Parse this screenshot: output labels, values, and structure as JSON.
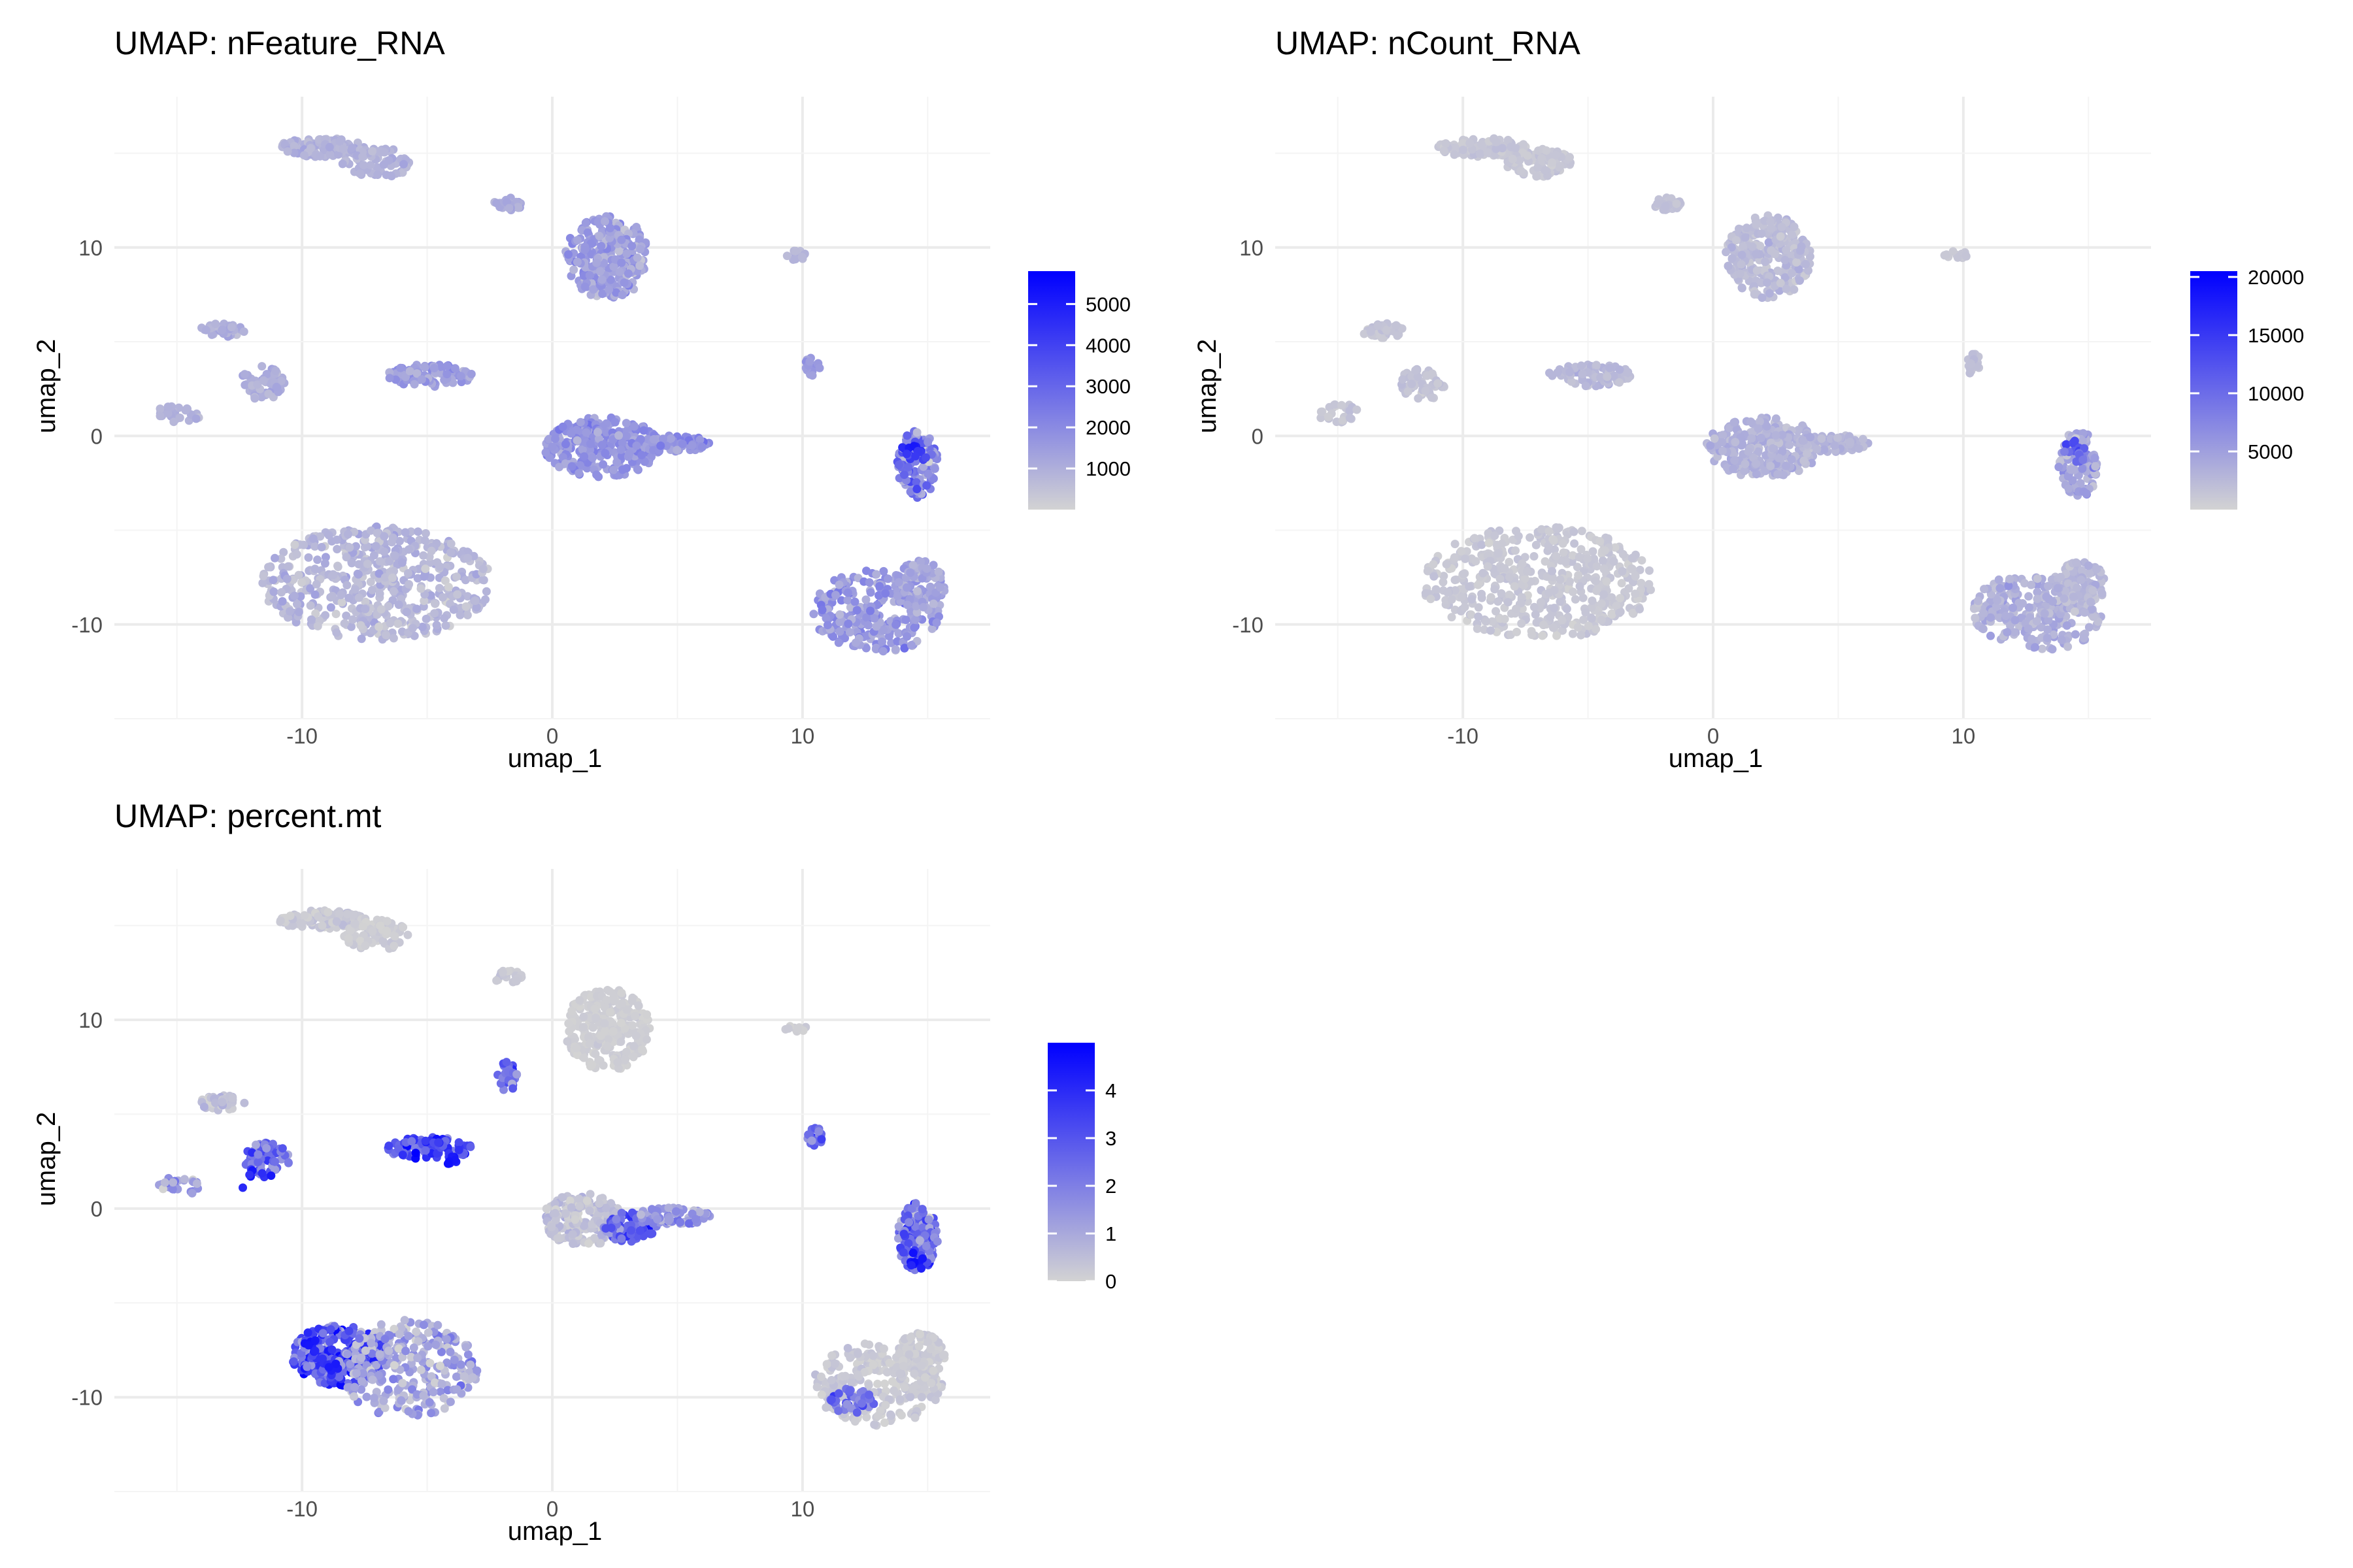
{
  "chart_data": [
    {
      "type": "scatter",
      "title": "UMAP: nFeature_RNA",
      "xlabel": "umap_1",
      "ylabel": "umap_2",
      "xlim": [
        -17.5,
        17.5
      ],
      "ylim": [
        -15,
        18
      ],
      "xticks": [
        -10,
        0,
        10
      ],
      "yticks": [
        -10,
        0,
        10
      ],
      "grid": true,
      "legend": {
        "position": "right",
        "type": "colorbar",
        "min": 0,
        "max": 5800,
        "ticks": [
          1000,
          2000,
          3000,
          4000,
          5000
        ],
        "low_color": "#d3d3d3",
        "high_color": "#0000ff"
      },
      "clusters": [
        {
          "cx": -7.0,
          "cy": -7.8,
          "rx": 4.6,
          "ry": 3.0,
          "n": 520,
          "base": 0.13,
          "spread": 0.08
        },
        {
          "cx": 13.0,
          "cy": -9.3,
          "rx": 2.6,
          "ry": 2.2,
          "n": 260,
          "base": 0.28,
          "spread": 0.12
        },
        {
          "cx": 14.7,
          "cy": -8.0,
          "rx": 1.0,
          "ry": 1.4,
          "n": 100,
          "base": 0.22,
          "spread": 0.1
        },
        {
          "cx": 2.0,
          "cy": -0.6,
          "rx": 2.3,
          "ry": 1.6,
          "n": 260,
          "base": 0.3,
          "spread": 0.1
        },
        {
          "cx": 4.8,
          "cy": -0.4,
          "rx": 1.5,
          "ry": 0.45,
          "n": 70,
          "base": 0.3,
          "spread": 0.1
        },
        {
          "cx": 14.6,
          "cy": -1.5,
          "rx": 0.8,
          "ry": 1.8,
          "n": 120,
          "base": 0.35,
          "spread": 0.25
        },
        {
          "cx": 2.2,
          "cy": 9.5,
          "rx": 1.7,
          "ry": 2.2,
          "n": 260,
          "base": 0.24,
          "spread": 0.12
        },
        {
          "cx": -1.8,
          "cy": 12.3,
          "rx": 0.6,
          "ry": 0.35,
          "n": 25,
          "base": 0.2,
          "spread": 0.05
        },
        {
          "cx": -9.2,
          "cy": 15.3,
          "rx": 1.8,
          "ry": 0.5,
          "n": 110,
          "base": 0.15,
          "spread": 0.05
        },
        {
          "cx": -7.0,
          "cy": 14.5,
          "rx": 1.4,
          "ry": 0.8,
          "n": 80,
          "base": 0.15,
          "spread": 0.05
        },
        {
          "cx": -4.9,
          "cy": 3.2,
          "rx": 1.7,
          "ry": 0.6,
          "n": 90,
          "base": 0.26,
          "spread": 0.1
        },
        {
          "cx": -13.2,
          "cy": 5.6,
          "rx": 0.9,
          "ry": 0.4,
          "n": 40,
          "base": 0.16,
          "spread": 0.05
        },
        {
          "cx": -11.6,
          "cy": 2.8,
          "rx": 0.9,
          "ry": 0.9,
          "n": 55,
          "base": 0.17,
          "spread": 0.06
        },
        {
          "cx": -14.9,
          "cy": 1.2,
          "rx": 0.9,
          "ry": 0.5,
          "n": 30,
          "base": 0.15,
          "spread": 0.05
        },
        {
          "cx": 10.4,
          "cy": 3.8,
          "rx": 0.3,
          "ry": 0.6,
          "n": 20,
          "base": 0.25,
          "spread": 0.05
        },
        {
          "cx": 9.7,
          "cy": 9.6,
          "rx": 0.5,
          "ry": 0.25,
          "n": 12,
          "base": 0.12,
          "spread": 0.03
        }
      ],
      "hotspots": [
        {
          "x": 14.4,
          "y": -0.6,
          "v": 0.92
        },
        {
          "x": 14.5,
          "y": -1.0,
          "v": 0.75
        },
        {
          "x": 14.2,
          "y": -1.6,
          "v": 0.6
        }
      ]
    },
    {
      "type": "scatter",
      "title": "UMAP: nCount_RNA",
      "xlabel": "umap_1",
      "ylabel": "umap_2",
      "xlim": [
        -17.5,
        17.5
      ],
      "ylim": [
        -15,
        18
      ],
      "xticks": [
        -10,
        0,
        10
      ],
      "yticks": [
        -10,
        0,
        10
      ],
      "grid": true,
      "legend": {
        "position": "right",
        "type": "colorbar",
        "min": 0,
        "max": 20500,
        "ticks": [
          5000,
          10000,
          15000,
          20000
        ],
        "low_color": "#d3d3d3",
        "high_color": "#0000ff"
      },
      "clusters": [
        {
          "cx": -7.0,
          "cy": -7.8,
          "rx": 4.6,
          "ry": 3.0,
          "n": 520,
          "base": 0.05,
          "spread": 0.03
        },
        {
          "cx": 13.0,
          "cy": -9.3,
          "rx": 2.6,
          "ry": 2.2,
          "n": 260,
          "base": 0.16,
          "spread": 0.08
        },
        {
          "cx": 14.7,
          "cy": -8.0,
          "rx": 1.0,
          "ry": 1.4,
          "n": 100,
          "base": 0.12,
          "spread": 0.05
        },
        {
          "cx": 2.0,
          "cy": -0.6,
          "rx": 2.3,
          "ry": 1.6,
          "n": 260,
          "base": 0.15,
          "spread": 0.06
        },
        {
          "cx": 4.8,
          "cy": -0.4,
          "rx": 1.5,
          "ry": 0.45,
          "n": 70,
          "base": 0.14,
          "spread": 0.05
        },
        {
          "cx": 14.6,
          "cy": -1.5,
          "rx": 0.8,
          "ry": 1.8,
          "n": 120,
          "base": 0.2,
          "spread": 0.15
        },
        {
          "cx": 2.2,
          "cy": 9.5,
          "rx": 1.7,
          "ry": 2.2,
          "n": 260,
          "base": 0.1,
          "spread": 0.05
        },
        {
          "cx": -1.8,
          "cy": 12.3,
          "rx": 0.6,
          "ry": 0.35,
          "n": 25,
          "base": 0.08,
          "spread": 0.03
        },
        {
          "cx": -9.2,
          "cy": 15.3,
          "rx": 1.8,
          "ry": 0.5,
          "n": 110,
          "base": 0.06,
          "spread": 0.03
        },
        {
          "cx": -7.0,
          "cy": 14.5,
          "rx": 1.4,
          "ry": 0.8,
          "n": 80,
          "base": 0.06,
          "spread": 0.03
        },
        {
          "cx": -4.9,
          "cy": 3.2,
          "rx": 1.7,
          "ry": 0.6,
          "n": 90,
          "base": 0.12,
          "spread": 0.05
        },
        {
          "cx": -13.2,
          "cy": 5.6,
          "rx": 0.9,
          "ry": 0.4,
          "n": 40,
          "base": 0.06,
          "spread": 0.03
        },
        {
          "cx": -11.6,
          "cy": 2.8,
          "rx": 0.9,
          "ry": 0.9,
          "n": 55,
          "base": 0.07,
          "spread": 0.03
        },
        {
          "cx": -14.9,
          "cy": 1.2,
          "rx": 0.9,
          "ry": 0.5,
          "n": 30,
          "base": 0.06,
          "spread": 0.03
        },
        {
          "cx": 10.4,
          "cy": 3.8,
          "rx": 0.3,
          "ry": 0.6,
          "n": 20,
          "base": 0.1,
          "spread": 0.03
        },
        {
          "cx": 9.7,
          "cy": 9.6,
          "rx": 0.5,
          "ry": 0.25,
          "n": 12,
          "base": 0.05,
          "spread": 0.02
        }
      ],
      "hotspots": [
        {
          "x": 14.4,
          "y": -0.6,
          "v": 0.7
        },
        {
          "x": 14.5,
          "y": -1.0,
          "v": 0.55
        }
      ]
    },
    {
      "type": "scatter",
      "title": "UMAP: percent.mt",
      "xlabel": "umap_1",
      "ylabel": "umap_2",
      "xlim": [
        -17.5,
        17.5
      ],
      "ylim": [
        -15,
        18
      ],
      "xticks": [
        -10,
        0,
        10
      ],
      "yticks": [
        -10,
        0,
        10
      ],
      "grid": true,
      "legend": {
        "position": "right",
        "type": "colorbar",
        "min": 0,
        "max": 5,
        "ticks": [
          0,
          1,
          2,
          3,
          4
        ],
        "low_color": "#d3d3d3",
        "high_color": "#0000ff"
      },
      "clusters": [
        {
          "cx": -8.5,
          "cy": -7.8,
          "rx": 1.9,
          "ry": 1.6,
          "n": 260,
          "base": 0.6,
          "spread": 0.3
        },
        {
          "cx": -5.8,
          "cy": -8.5,
          "rx": 2.8,
          "ry": 2.6,
          "n": 280,
          "base": 0.2,
          "spread": 0.2
        },
        {
          "cx": 13.0,
          "cy": -9.3,
          "rx": 2.6,
          "ry": 2.2,
          "n": 240,
          "base": 0.04,
          "spread": 0.05
        },
        {
          "cx": 12.0,
          "cy": -10.2,
          "rx": 0.9,
          "ry": 0.7,
          "n": 40,
          "base": 0.45,
          "spread": 0.2
        },
        {
          "cx": 14.7,
          "cy": -8.0,
          "rx": 1.0,
          "ry": 1.4,
          "n": 100,
          "base": 0.03,
          "spread": 0.03
        },
        {
          "cx": 1.2,
          "cy": -0.6,
          "rx": 1.6,
          "ry": 1.4,
          "n": 180,
          "base": 0.08,
          "spread": 0.1
        },
        {
          "cx": 3.1,
          "cy": -1.0,
          "rx": 1.1,
          "ry": 0.8,
          "n": 90,
          "base": 0.55,
          "spread": 0.3
        },
        {
          "cx": 4.8,
          "cy": -0.4,
          "rx": 1.5,
          "ry": 0.45,
          "n": 70,
          "base": 0.3,
          "spread": 0.2
        },
        {
          "cx": 14.6,
          "cy": -1.5,
          "rx": 0.8,
          "ry": 1.8,
          "n": 140,
          "base": 0.5,
          "spread": 0.3
        },
        {
          "cx": 2.2,
          "cy": 9.5,
          "rx": 1.7,
          "ry": 2.2,
          "n": 260,
          "base": 0.02,
          "spread": 0.02
        },
        {
          "cx": -1.8,
          "cy": 7.0,
          "rx": 0.4,
          "ry": 0.8,
          "n": 25,
          "base": 0.5,
          "spread": 0.25
        },
        {
          "cx": -1.8,
          "cy": 12.3,
          "rx": 0.6,
          "ry": 0.35,
          "n": 25,
          "base": 0.05,
          "spread": 0.05
        },
        {
          "cx": -9.2,
          "cy": 15.3,
          "rx": 1.8,
          "ry": 0.5,
          "n": 110,
          "base": 0.05,
          "spread": 0.05
        },
        {
          "cx": -7.0,
          "cy": 14.5,
          "rx": 1.4,
          "ry": 0.8,
          "n": 80,
          "base": 0.03,
          "spread": 0.03
        },
        {
          "cx": -4.9,
          "cy": 3.2,
          "rx": 1.7,
          "ry": 0.6,
          "n": 100,
          "base": 0.65,
          "spread": 0.3
        },
        {
          "cx": -13.2,
          "cy": 5.6,
          "rx": 0.9,
          "ry": 0.4,
          "n": 40,
          "base": 0.08,
          "spread": 0.08
        },
        {
          "cx": -11.4,
          "cy": 2.6,
          "rx": 0.9,
          "ry": 0.9,
          "n": 60,
          "base": 0.45,
          "spread": 0.3
        },
        {
          "cx": -14.9,
          "cy": 1.2,
          "rx": 0.9,
          "ry": 0.5,
          "n": 30,
          "base": 0.3,
          "spread": 0.2
        },
        {
          "cx": 10.5,
          "cy": 3.8,
          "rx": 0.3,
          "ry": 0.6,
          "n": 20,
          "base": 0.45,
          "spread": 0.2
        },
        {
          "cx": 9.7,
          "cy": 9.6,
          "rx": 0.5,
          "ry": 0.25,
          "n": 12,
          "base": 0.02,
          "spread": 0.02
        }
      ],
      "hotspots": [
        {
          "x": -9.6,
          "y": -7.2,
          "v": 0.95
        },
        {
          "x": -8.8,
          "y": -8.6,
          "v": 0.9
        },
        {
          "x": -4.0,
          "y": 2.5,
          "v": 0.95
        },
        {
          "x": -11.8,
          "y": 1.8,
          "v": 0.9
        },
        {
          "x": 14.5,
          "y": -2.8,
          "v": 0.95
        }
      ]
    }
  ]
}
